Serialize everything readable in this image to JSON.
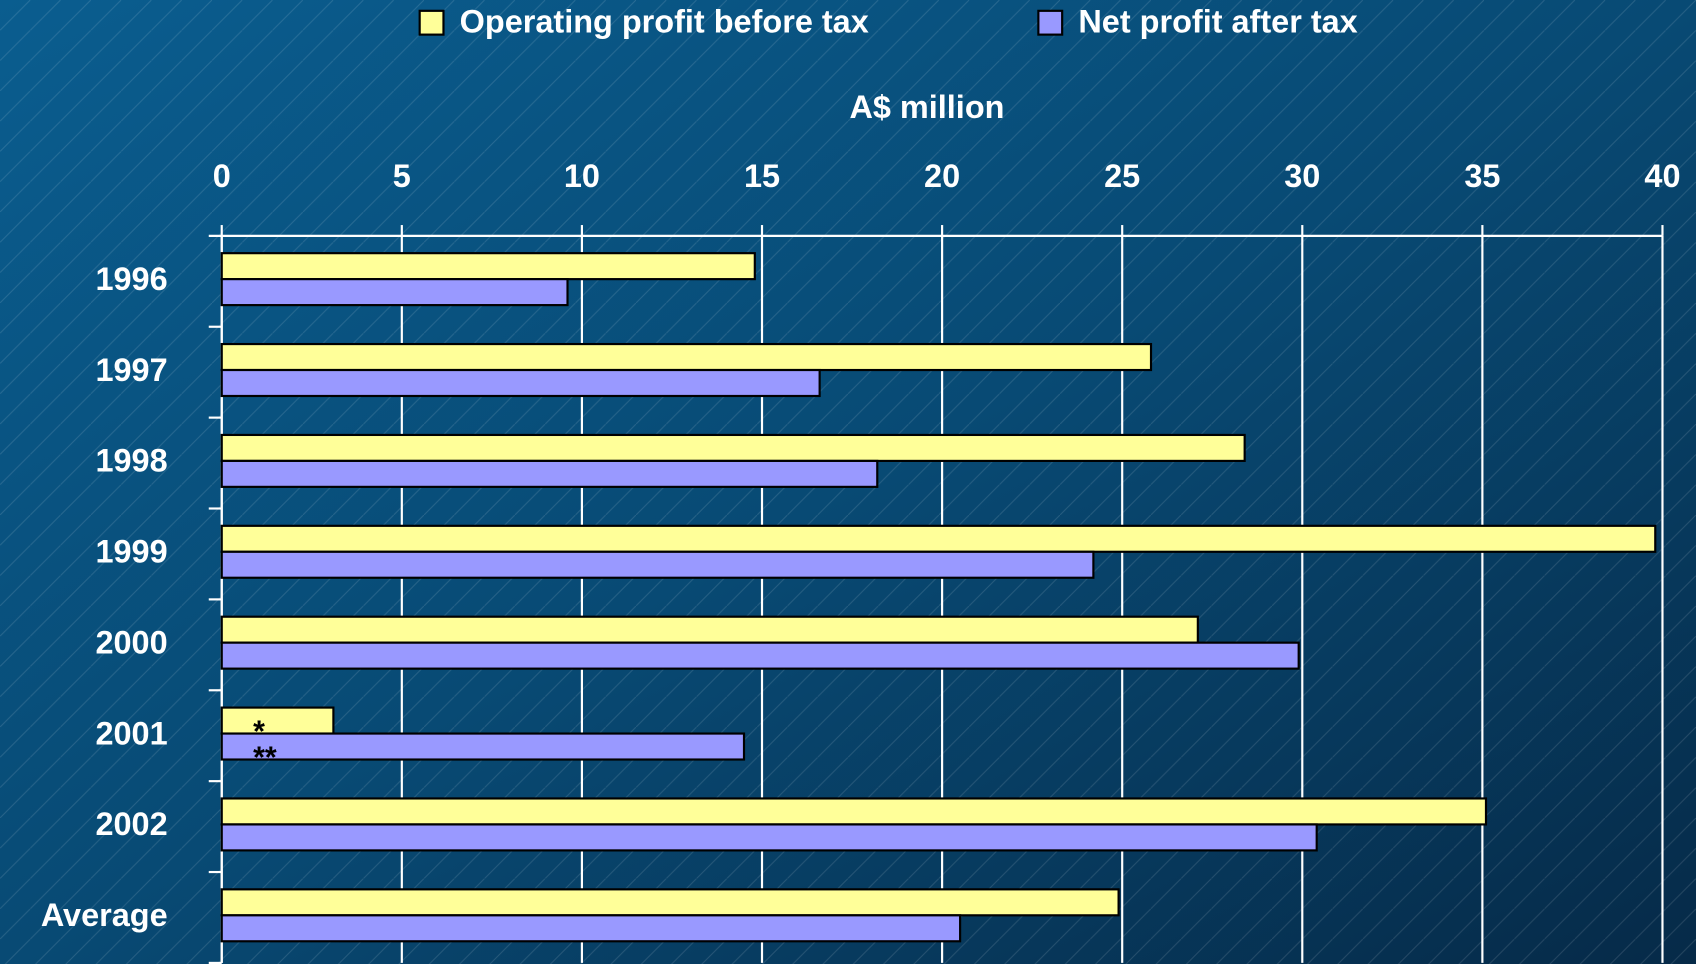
{
  "chart_data": {
    "type": "bar",
    "orientation": "horizontal",
    "xlabel": "A$ million",
    "categories": [
      "1996",
      "1997",
      "1998",
      "1999",
      "2000",
      "2001",
      "2002",
      "Average"
    ],
    "series": [
      {
        "name": "Operating profit before tax",
        "color": "#ffff99",
        "values": [
          14.8,
          25.8,
          28.4,
          39.8,
          27.1,
          3.1,
          35.1,
          24.9
        ]
      },
      {
        "name": "Net profit after tax",
        "color": "#9999ff",
        "values": [
          9.6,
          16.6,
          18.2,
          24.2,
          29.9,
          14.5,
          30.4,
          20.5
        ]
      }
    ],
    "annotations": [
      "*",
      "**"
    ],
    "xlim": [
      0,
      40
    ],
    "xticks": [
      0,
      5,
      10,
      15,
      20,
      25,
      30,
      35,
      40
    ],
    "grid": true,
    "legend": "top"
  }
}
